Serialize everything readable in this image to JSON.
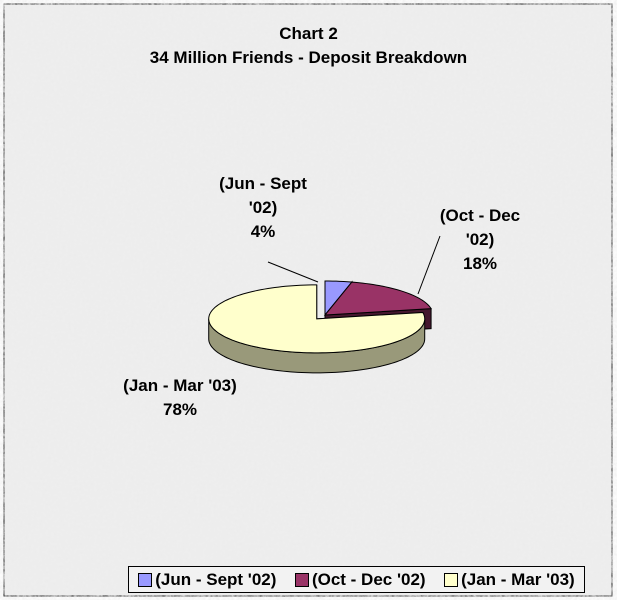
{
  "chart_data": {
    "type": "pie",
    "title": "Chart 2",
    "subtitle": "34 Million Friends - Deposit Breakdown",
    "categories": [
      "(Jun - Sept '02)",
      "(Oct - Dec '02)",
      "(Jan - Mar '03)"
    ],
    "values": [
      4,
      18,
      78
    ],
    "value_labels": [
      "4%",
      "18%",
      "78%"
    ],
    "colors": [
      "#9999ff",
      "#993366",
      "#ffffcc"
    ],
    "legend": "bottom"
  }
}
